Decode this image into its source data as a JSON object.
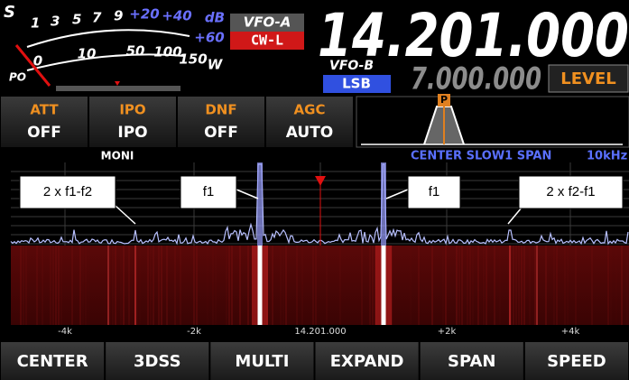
{
  "meter": {
    "s_label": "S",
    "s_scale": [
      "1",
      "3",
      "5",
      "7",
      "9"
    ],
    "db_scale": [
      "+20",
      "+40",
      "+60"
    ],
    "db_unit": "dB",
    "po_label": "PO",
    "po_scale": [
      "0",
      "10",
      "50",
      "100",
      "150"
    ],
    "po_unit": "W"
  },
  "vfo_a": {
    "label": "VFO-A",
    "mode": "CW-L",
    "frequency": "14.201.000"
  },
  "vfo_b": {
    "label": "VFO-B",
    "mode": "LSB",
    "frequency": "7.000.000"
  },
  "level_button": "LEVEL",
  "functions": [
    {
      "name": "ATT",
      "value": "OFF"
    },
    {
      "name": "IPO",
      "value": "IPO"
    },
    {
      "name": "DNF",
      "value": "OFF"
    },
    {
      "name": "AGC",
      "value": "AUTO"
    }
  ],
  "filter_marker": "P",
  "scope_status": {
    "monitor": "MONI",
    "mode": "CENTER SLOW1 SPAN",
    "span": "10kHz"
  },
  "annotations": [
    "2 x f1-f2",
    "f1",
    "f1",
    "2 x f2-f1"
  ],
  "axis_labels": [
    "-4k",
    "-2k",
    "14.201.000",
    "+2k",
    "+4k"
  ],
  "buttons": [
    "CENTER",
    "3DSS",
    "MULTI",
    "EXPAND",
    "SPAN",
    "SPEED"
  ]
}
